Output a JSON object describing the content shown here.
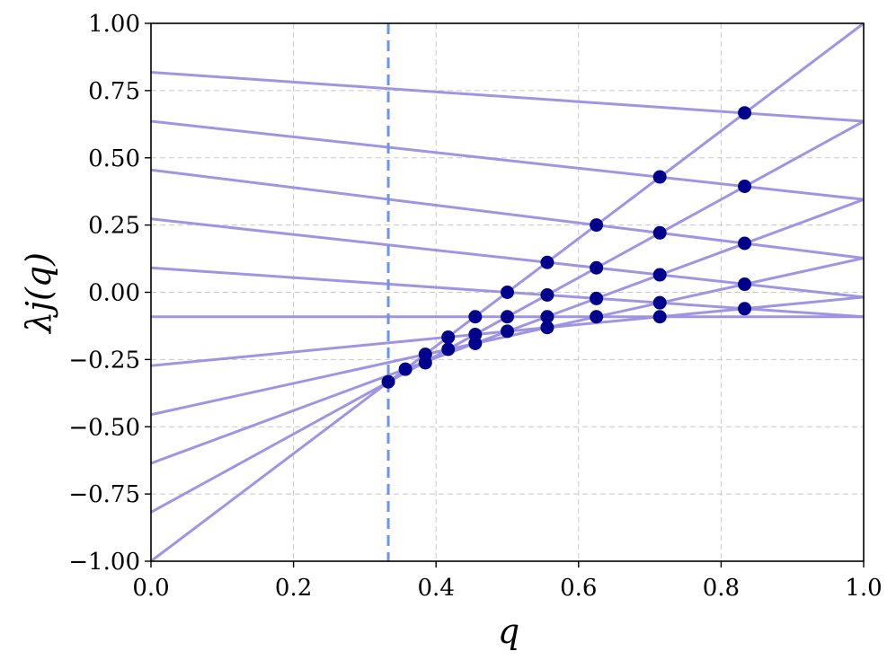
{
  "chart_data": {
    "type": "line",
    "xlabel": "q",
    "ylabel": "λj(q)",
    "xlim": [
      0.0,
      1.0
    ],
    "ylim": [
      -1.0,
      1.0
    ],
    "grid": true,
    "x_ticks": [
      "0.0",
      "0.2",
      "0.4",
      "0.6",
      "0.8",
      "1.0"
    ],
    "y_ticks": [
      "1.00",
      "0.75",
      "0.50",
      "0.25",
      "0.00",
      "−0.25",
      "−0.50",
      "−0.75",
      "−1.00"
    ],
    "vertical_reference_line": {
      "x": 0.333,
      "style": "dashed"
    },
    "series_color": "#9b8fe0",
    "point_color": "#00008b",
    "reference_color": "#6f94e6",
    "lines": [
      {
        "x": [
          0.0,
          1.0
        ],
        "y": [
          0.818,
          0.636
        ]
      },
      {
        "x": [
          0.0,
          1.0
        ],
        "y": [
          0.636,
          0.345
        ]
      },
      {
        "x": [
          0.0,
          1.0
        ],
        "y": [
          0.455,
          0.127
        ]
      },
      {
        "x": [
          0.0,
          1.0
        ],
        "y": [
          0.273,
          -0.018
        ]
      },
      {
        "x": [
          0.0,
          1.0
        ],
        "y": [
          0.091,
          -0.091
        ]
      },
      {
        "x": [
          0.0,
          1.0
        ],
        "y": [
          -0.091,
          -0.091
        ]
      },
      {
        "x": [
          0.0,
          1.0
        ],
        "y": [
          -0.273,
          -0.018
        ]
      },
      {
        "x": [
          0.0,
          1.0
        ],
        "y": [
          -0.455,
          0.127
        ]
      },
      {
        "x": [
          0.0,
          1.0
        ],
        "y": [
          -0.636,
          0.345
        ]
      },
      {
        "x": [
          0.0,
          1.0
        ],
        "y": [
          -0.818,
          0.636
        ]
      },
      {
        "x": [
          0.0,
          1.0
        ],
        "y": [
          -1.0,
          1.0
        ]
      }
    ],
    "points": [
      {
        "x": 0.333,
        "y": -0.333
      },
      {
        "x": 0.357,
        "y": -0.286
      },
      {
        "x": 0.385,
        "y": -0.231
      },
      {
        "x": 0.385,
        "y": -0.262
      },
      {
        "x": 0.417,
        "y": -0.167
      },
      {
        "x": 0.417,
        "y": -0.212
      },
      {
        "x": 0.455,
        "y": -0.091
      },
      {
        "x": 0.455,
        "y": -0.157
      },
      {
        "x": 0.455,
        "y": -0.19
      },
      {
        "x": 0.5,
        "y": 0.0
      },
      {
        "x": 0.5,
        "y": -0.091
      },
      {
        "x": 0.5,
        "y": -0.145
      },
      {
        "x": 0.556,
        "y": 0.111
      },
      {
        "x": 0.556,
        "y": -0.01
      },
      {
        "x": 0.556,
        "y": -0.091
      },
      {
        "x": 0.556,
        "y": -0.131
      },
      {
        "x": 0.625,
        "y": 0.25
      },
      {
        "x": 0.625,
        "y": 0.091
      },
      {
        "x": 0.625,
        "y": -0.023
      },
      {
        "x": 0.625,
        "y": -0.091
      },
      {
        "x": 0.714,
        "y": 0.429
      },
      {
        "x": 0.714,
        "y": 0.221
      },
      {
        "x": 0.714,
        "y": 0.065
      },
      {
        "x": 0.714,
        "y": -0.039
      },
      {
        "x": 0.714,
        "y": -0.091
      },
      {
        "x": 0.833,
        "y": 0.667
      },
      {
        "x": 0.833,
        "y": 0.394
      },
      {
        "x": 0.833,
        "y": 0.182
      },
      {
        "x": 0.833,
        "y": 0.03
      },
      {
        "x": 0.833,
        "y": -0.061
      }
    ]
  }
}
